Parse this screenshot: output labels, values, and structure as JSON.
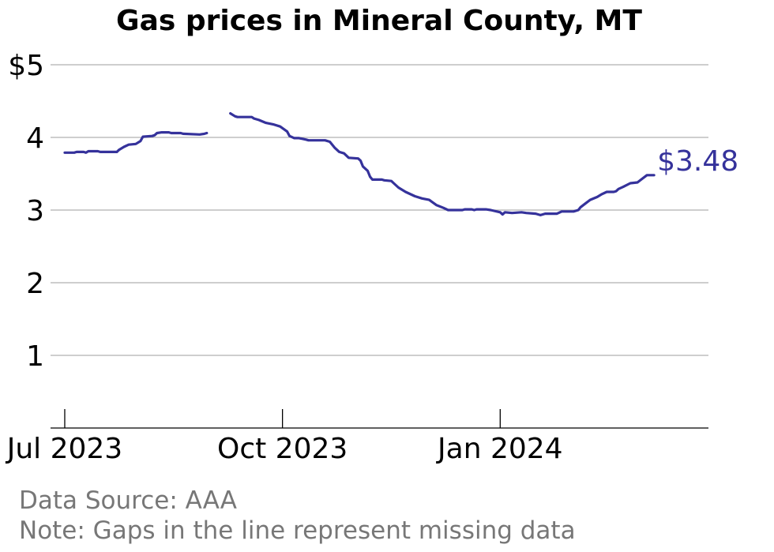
{
  "chart_data": {
    "type": "line",
    "title": "Gas prices in Mineral County, MT",
    "xlabel": "",
    "ylabel": "",
    "ylim": [
      0,
      5
    ],
    "yticks": [
      {
        "value": 1,
        "label": "1"
      },
      {
        "value": 2,
        "label": "2"
      },
      {
        "value": 3,
        "label": "3"
      },
      {
        "value": 4,
        "label": "4"
      },
      {
        "value": 5,
        "label": "$5"
      }
    ],
    "xlim": [
      "2023-06-25",
      "2024-03-29"
    ],
    "xticks": [
      {
        "date": "2023-07-01",
        "label": "Jul 2023"
      },
      {
        "date": "2023-10-01",
        "label": "Oct 2023"
      },
      {
        "date": "2024-01-01",
        "label": "Jan 2024"
      }
    ],
    "grid": true,
    "series_color": "#35329b",
    "end_label": "$3.48",
    "series": [
      {
        "segments": [
          [
            [
              "2023-07-01",
              3.79
            ],
            [
              "2023-07-05",
              3.79
            ],
            [
              "2023-07-06",
              3.8
            ],
            [
              "2023-07-09",
              3.8
            ],
            [
              "2023-07-10",
              3.79
            ],
            [
              "2023-07-11",
              3.81
            ],
            [
              "2023-07-15",
              3.81
            ],
            [
              "2023-07-16",
              3.8
            ],
            [
              "2023-07-23",
              3.8
            ],
            [
              "2023-07-24",
              3.83
            ],
            [
              "2023-07-26",
              3.87
            ],
            [
              "2023-07-28",
              3.9
            ],
            [
              "2023-07-31",
              3.91
            ],
            [
              "2023-08-02",
              3.95
            ],
            [
              "2023-08-03",
              4.01
            ],
            [
              "2023-08-07",
              4.02
            ],
            [
              "2023-08-08",
              4.03
            ],
            [
              "2023-08-09",
              4.06
            ],
            [
              "2023-08-11",
              4.07
            ],
            [
              "2023-08-14",
              4.07
            ],
            [
              "2023-08-15",
              4.06
            ],
            [
              "2023-08-19",
              4.06
            ],
            [
              "2023-08-20",
              4.05
            ],
            [
              "2023-08-27",
              4.04
            ],
            [
              "2023-08-29",
              4.05
            ],
            [
              "2023-08-30",
              4.06
            ]
          ],
          [
            [
              "2023-09-09",
              4.33
            ],
            [
              "2023-09-11",
              4.29
            ],
            [
              "2023-09-12",
              4.28
            ],
            [
              "2023-09-18",
              4.28
            ],
            [
              "2023-09-19",
              4.26
            ],
            [
              "2023-09-21",
              4.24
            ],
            [
              "2023-09-24",
              4.2
            ],
            [
              "2023-09-27",
              4.18
            ],
            [
              "2023-09-30",
              4.15
            ],
            [
              "2023-10-03",
              4.08
            ],
            [
              "2023-10-04",
              4.02
            ],
            [
              "2023-10-06",
              3.99
            ],
            [
              "2023-10-08",
              3.99
            ],
            [
              "2023-10-11",
              3.97
            ],
            [
              "2023-10-12",
              3.96
            ],
            [
              "2023-10-19",
              3.96
            ],
            [
              "2023-10-21",
              3.94
            ],
            [
              "2023-10-23",
              3.86
            ],
            [
              "2023-10-25",
              3.8
            ],
            [
              "2023-10-27",
              3.78
            ],
            [
              "2023-10-29",
              3.72
            ],
            [
              "2023-11-02",
              3.71
            ],
            [
              "2023-11-03",
              3.68
            ],
            [
              "2023-11-04",
              3.6
            ],
            [
              "2023-11-06",
              3.54
            ],
            [
              "2023-11-07",
              3.46
            ],
            [
              "2023-11-08",
              3.42
            ],
            [
              "2023-11-12",
              3.42
            ],
            [
              "2023-11-13",
              3.41
            ],
            [
              "2023-11-16",
              3.4
            ],
            [
              "2023-11-17",
              3.37
            ],
            [
              "2023-11-19",
              3.31
            ],
            [
              "2023-11-22",
              3.25
            ],
            [
              "2023-11-26",
              3.19
            ],
            [
              "2023-11-29",
              3.16
            ],
            [
              "2023-12-02",
              3.14
            ],
            [
              "2023-12-05",
              3.07
            ],
            [
              "2023-12-08",
              3.03
            ],
            [
              "2023-12-10",
              3.0
            ],
            [
              "2023-12-16",
              3.0
            ],
            [
              "2023-12-17",
              3.01
            ],
            [
              "2023-12-20",
              3.01
            ],
            [
              "2023-12-21",
              3.0
            ],
            [
              "2023-12-22",
              3.01
            ],
            [
              "2023-12-26",
              3.01
            ],
            [
              "2023-12-28",
              3.0
            ],
            [
              "2024-01-01",
              2.97
            ],
            [
              "2024-01-02",
              2.94
            ],
            [
              "2024-01-03",
              2.97
            ],
            [
              "2024-01-06",
              2.96
            ],
            [
              "2024-01-10",
              2.97
            ],
            [
              "2024-01-12",
              2.96
            ],
            [
              "2024-01-16",
              2.95
            ],
            [
              "2024-01-18",
              2.93
            ],
            [
              "2024-01-20",
              2.95
            ],
            [
              "2024-01-25",
              2.95
            ],
            [
              "2024-01-27",
              2.98
            ],
            [
              "2024-02-01",
              2.98
            ],
            [
              "2024-02-03",
              3.0
            ],
            [
              "2024-02-04",
              3.04
            ],
            [
              "2024-02-06",
              3.09
            ],
            [
              "2024-02-08",
              3.14
            ],
            [
              "2024-02-11",
              3.18
            ],
            [
              "2024-02-13",
              3.22
            ],
            [
              "2024-02-15",
              3.25
            ],
            [
              "2024-02-18",
              3.25
            ],
            [
              "2024-02-19",
              3.26
            ],
            [
              "2024-02-20",
              3.29
            ],
            [
              "2024-02-22",
              3.32
            ],
            [
              "2024-02-25",
              3.37
            ],
            [
              "2024-02-28",
              3.38
            ],
            [
              "2024-03-01",
              3.43
            ],
            [
              "2024-03-03",
              3.48
            ],
            [
              "2024-03-06",
              3.48
            ]
          ]
        ]
      }
    ]
  },
  "notes": {
    "source": "Data Source: AAA",
    "gaps": "Note: Gaps in the line represent missing data"
  }
}
